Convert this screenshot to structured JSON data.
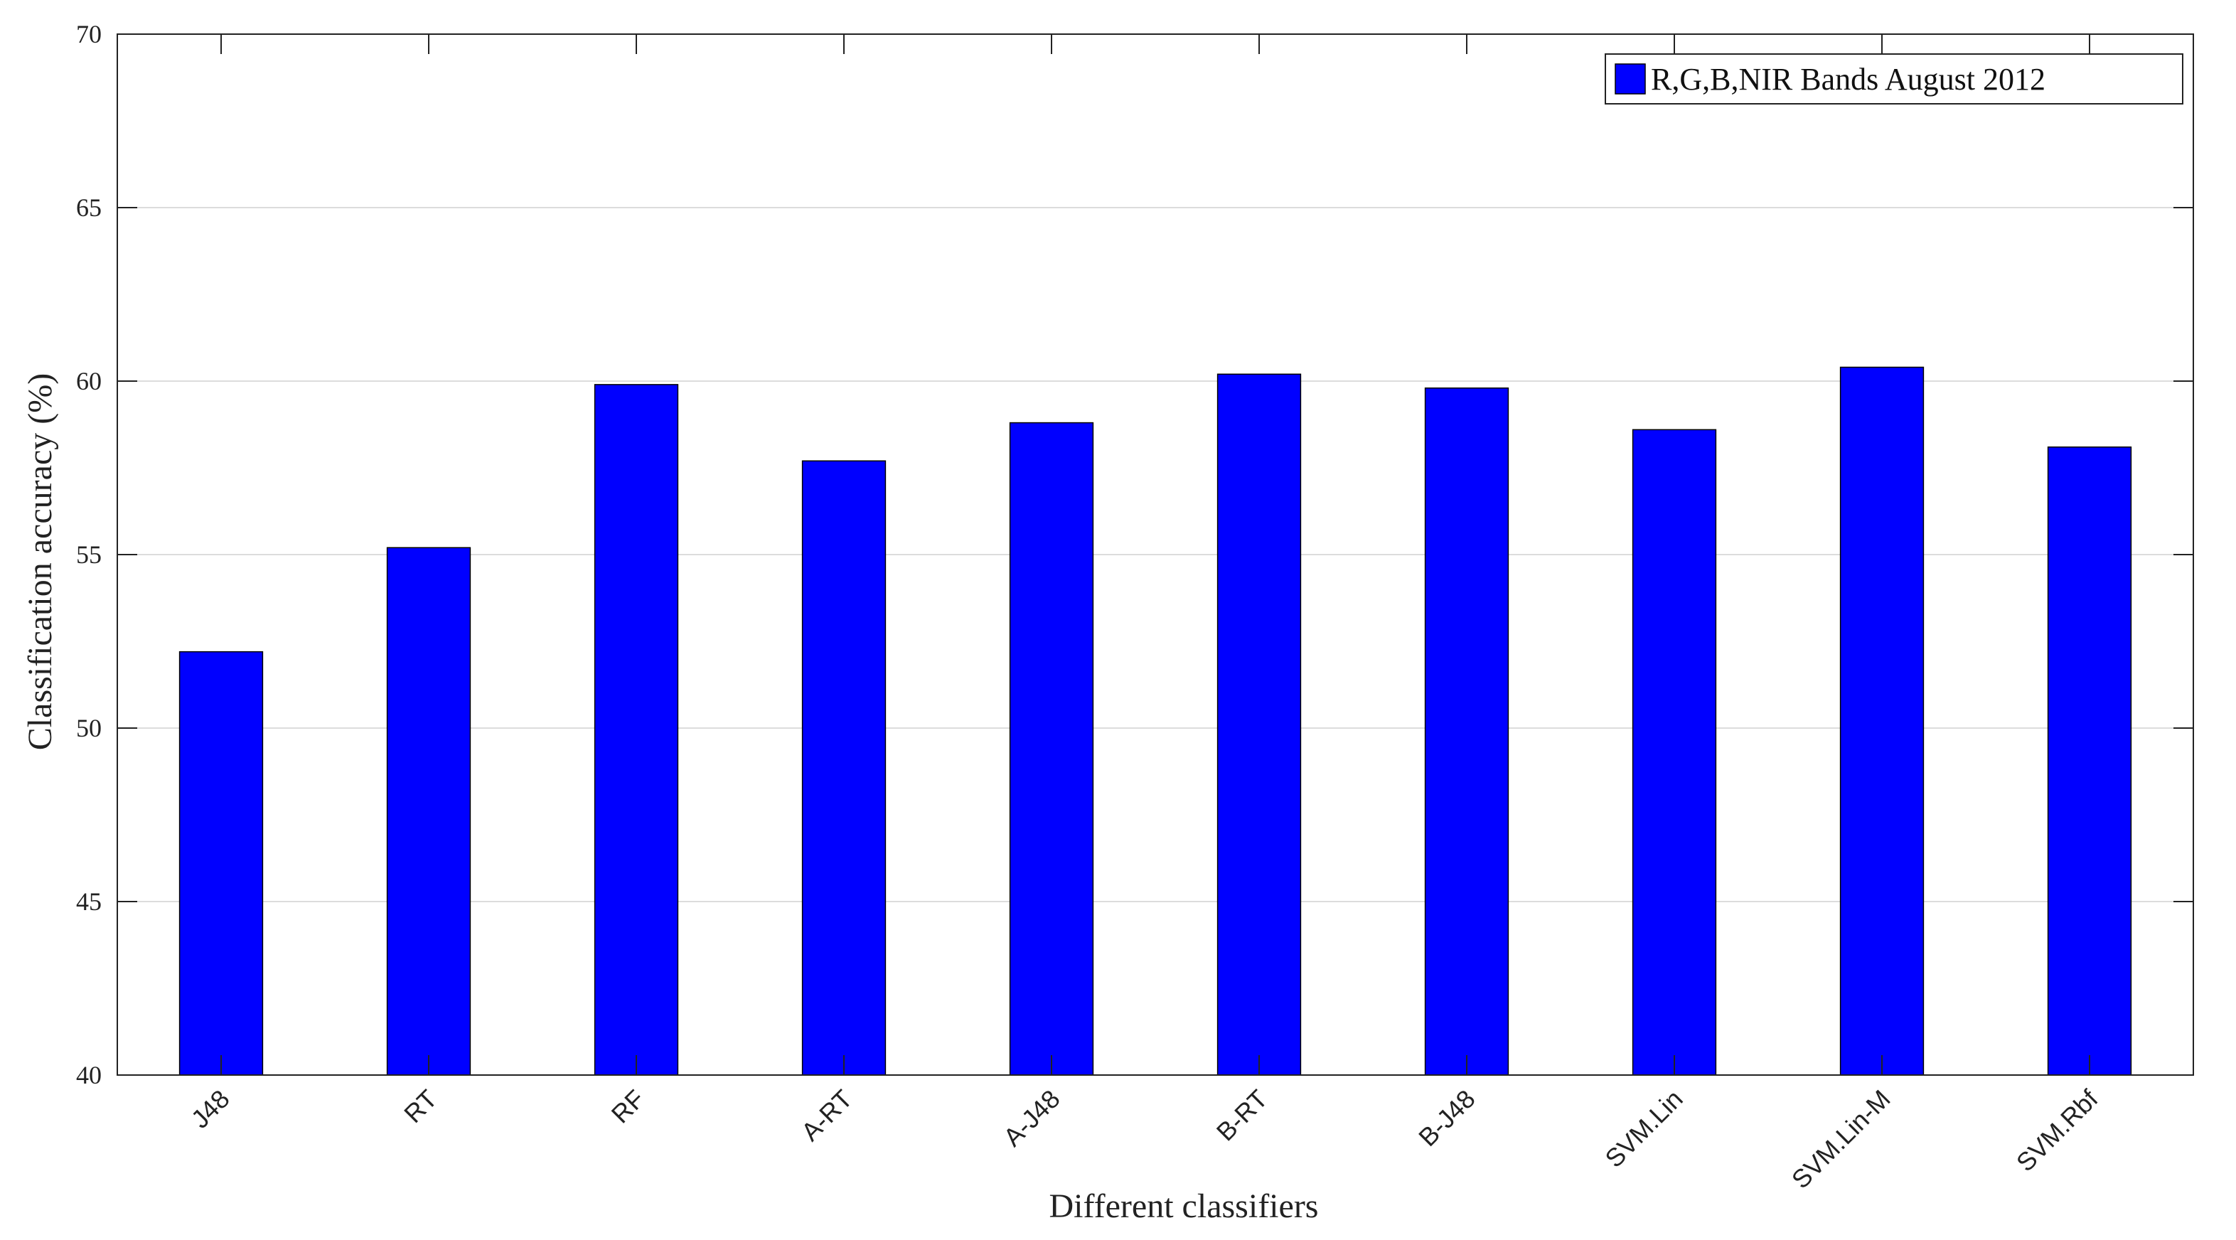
{
  "chart_data": {
    "type": "bar",
    "title": "",
    "xlabel": "Different classifiers",
    "ylabel": "Classification accuracy (%)",
    "ylim": [
      40,
      70
    ],
    "yticks": [
      40,
      45,
      50,
      55,
      60,
      65,
      70
    ],
    "grid": true,
    "legend_position": "top-right",
    "bar_color": "#0000ff",
    "categories": [
      "J48",
      "RT",
      "RF",
      "A-RT",
      "A-J48",
      "B-RT",
      "B-J48",
      "SVM.Lin",
      "SVM.Lin-M",
      "SVM.Rbf"
    ],
    "series": [
      {
        "name": "R,G,B,NIR Bands August 2012",
        "values": [
          52.2,
          55.2,
          59.9,
          57.7,
          58.8,
          60.2,
          59.8,
          58.6,
          60.4,
          58.1
        ]
      }
    ]
  }
}
